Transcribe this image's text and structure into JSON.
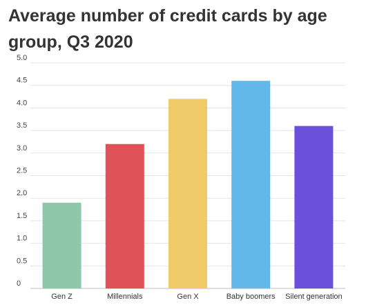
{
  "chart_data": {
    "type": "bar",
    "title": "Average number of credit cards by age group, Q3 2020",
    "xlabel": "",
    "ylabel": "",
    "categories": [
      "Gen Z",
      "Millennials",
      "Gen X",
      "Baby boomers",
      "Silent generation"
    ],
    "values": [
      1.9,
      3.2,
      4.2,
      4.6,
      3.6
    ],
    "colors": [
      "#8dc8a9",
      "#de5157",
      "#f1cb69",
      "#62b8e8",
      "#6b50da"
    ],
    "ylim": [
      0,
      5.0
    ],
    "yticks": [
      "0",
      "0.5",
      "1.0",
      "1.5",
      "2.0",
      "2.5",
      "3.0",
      "3.5",
      "4.0",
      "4.5",
      "5.0"
    ],
    "grid": true,
    "legend": "none"
  }
}
